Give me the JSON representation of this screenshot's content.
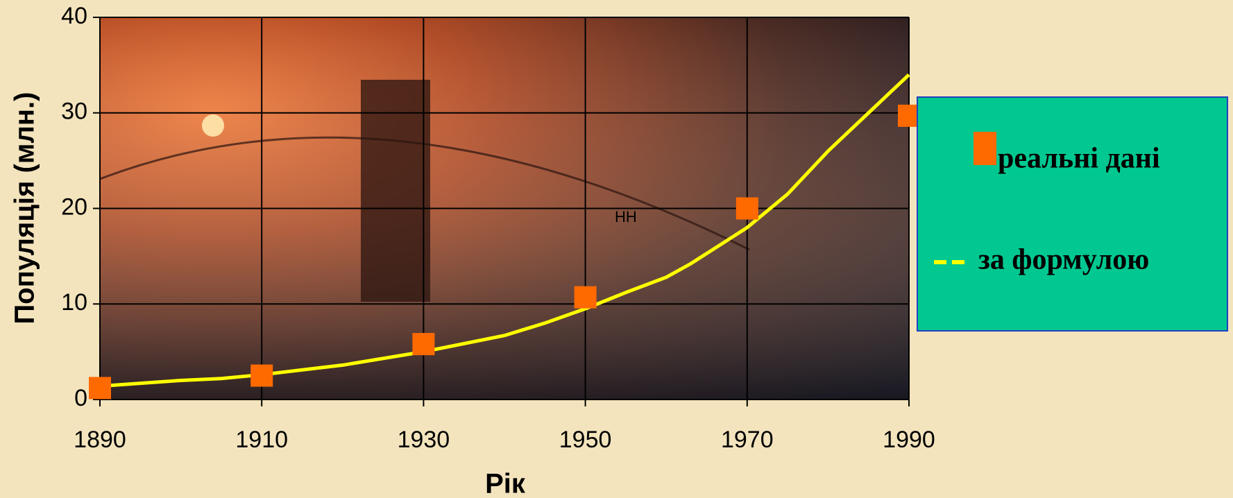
{
  "chart_data": {
    "type": "line",
    "x_label": "Рік",
    "y_label": "Популяція (млн.)",
    "annotation": "НН",
    "annotation_at": [
      1955,
      19
    ],
    "xlim": [
      1890,
      1990
    ],
    "xticks": [
      1890,
      1910,
      1930,
      1950,
      1970,
      1990
    ],
    "ylim": [
      0,
      40
    ],
    "yticks": [
      0,
      10,
      20,
      30,
      40
    ],
    "grid": true,
    "legend": "right",
    "series": [
      {
        "name": "реальні дані",
        "style": "markers",
        "color": "#ff6a00",
        "x": [
          1890,
          1910,
          1930,
          1950,
          1970,
          1990
        ],
        "values": [
          1.2,
          2.5,
          5.8,
          10.7,
          20,
          29.7
        ]
      },
      {
        "name": "за формулою",
        "style": "line",
        "color": "#ffff00",
        "x": [
          1890,
          1900,
          1905,
          1910,
          1920,
          1930,
          1940,
          1945,
          1950,
          1955,
          1960,
          1963,
          1970,
          1975,
          1980,
          1985,
          1990
        ],
        "values": [
          1.4,
          2.0,
          2.2,
          2.6,
          3.6,
          5.0,
          6.7,
          8.0,
          9.5,
          11.2,
          12.8,
          14.2,
          18.0,
          21.5,
          26.0,
          30.0,
          34.0
        ]
      }
    ]
  }
}
